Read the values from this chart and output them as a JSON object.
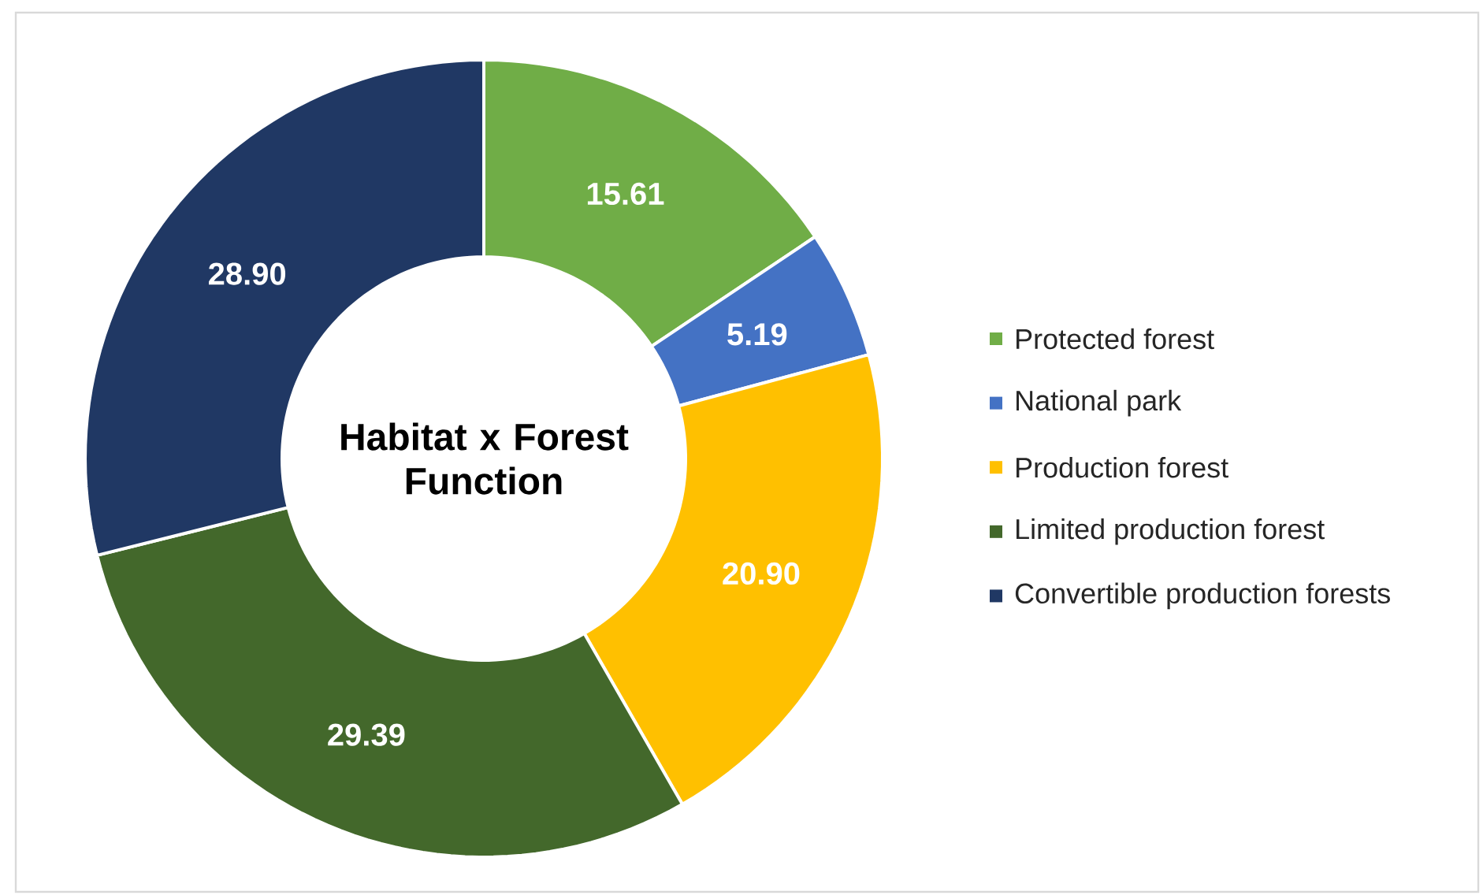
{
  "chart_data": {
    "type": "donut",
    "title": "Habitat x Forest Function",
    "categories": [
      "Protected forest",
      "National park",
      "Production forest",
      "Limited production forest",
      "Convertible production forests"
    ],
    "values": [
      15.61,
      5.19,
      20.9,
      29.39,
      28.9
    ],
    "value_labels": [
      "15.61",
      "5.19",
      "20.90",
      "29.39",
      "28.90"
    ],
    "colors": [
      "#70ad47",
      "#4472c4",
      "#ffc000",
      "#43682b",
      "#203864"
    ],
    "legend": "right"
  }
}
